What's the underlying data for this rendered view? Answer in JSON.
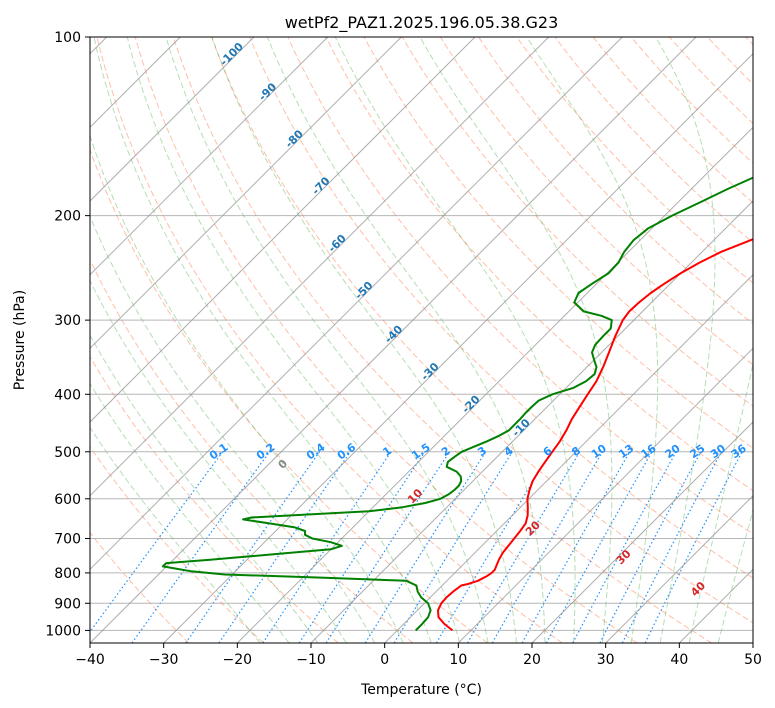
{
  "chart_data": {
    "type": "line",
    "title": "wetPf2_PAZ1.2025.196.05.38.G23",
    "xlabel": "Temperature (°C)",
    "ylabel": "Pressure (hPa)",
    "xlim": [
      -40,
      50
    ],
    "ylim": [
      1050,
      100
    ],
    "y_scale": "log",
    "grid": true,
    "x_ticks": [
      -40,
      -30,
      -20,
      -10,
      0,
      10,
      20,
      30,
      40,
      50
    ],
    "x_tick_labels": [
      "−40",
      "−30",
      "−20",
      "−10",
      "0",
      "10",
      "20",
      "30",
      "40",
      "50"
    ],
    "y_ticks": [
      1000,
      900,
      800,
      700,
      600,
      500,
      400,
      300,
      200,
      100
    ],
    "y_tick_labels": [
      "1000",
      "900",
      "800",
      "700",
      "600",
      "500",
      "400",
      "300",
      "200",
      "100"
    ],
    "series": [
      {
        "role": "temperature",
        "color": "#ff0000",
        "points": [
          [
            1000,
            7.5
          ],
          [
            975,
            5.5
          ],
          [
            950,
            3.8
          ],
          [
            925,
            2.8
          ],
          [
            900,
            2.3
          ],
          [
            880,
            2.2
          ],
          [
            860,
            2.3
          ],
          [
            840,
            2.6
          ],
          [
            835,
            3.3
          ],
          [
            825,
            4.2
          ],
          [
            810,
            4.8
          ],
          [
            800,
            5.0
          ],
          [
            790,
            5.0
          ],
          [
            775,
            4.6
          ],
          [
            760,
            4.2
          ],
          [
            740,
            3.8
          ],
          [
            720,
            3.6
          ],
          [
            700,
            3.4
          ],
          [
            680,
            3.2
          ],
          [
            660,
            2.9
          ],
          [
            640,
            2.1
          ],
          [
            620,
            1.0
          ],
          [
            600,
            -0.2
          ],
          [
            580,
            -1.1
          ],
          [
            560,
            -1.9
          ],
          [
            540,
            -2.4
          ],
          [
            520,
            -2.8
          ],
          [
            500,
            -3.2
          ],
          [
            480,
            -3.6
          ],
          [
            460,
            -4.2
          ],
          [
            440,
            -5.0
          ],
          [
            420,
            -5.6
          ],
          [
            400,
            -6.2
          ],
          [
            380,
            -6.8
          ],
          [
            360,
            -7.8
          ],
          [
            340,
            -9.0
          ],
          [
            320,
            -10.3
          ],
          [
            300,
            -11.5
          ],
          [
            290,
            -11.8
          ],
          [
            280,
            -11.7
          ],
          [
            270,
            -11.4
          ],
          [
            260,
            -10.8
          ],
          [
            250,
            -10.0
          ],
          [
            240,
            -8.9
          ],
          [
            230,
            -7.4
          ],
          [
            220,
            -5.0
          ],
          [
            210,
            -2.6
          ],
          [
            200,
            -0.3
          ],
          [
            190,
            2.1
          ],
          [
            180,
            4.7
          ],
          [
            170,
            6.2
          ],
          [
            160,
            7.6
          ],
          [
            150,
            9.0
          ],
          [
            140,
            11.0
          ],
          [
            130,
            13.0
          ],
          [
            120,
            15.5
          ],
          [
            115,
            16.8
          ],
          [
            110,
            17.7
          ],
          [
            105,
            18.1
          ],
          [
            100,
            18.5
          ]
        ]
      },
      {
        "role": "dewpoint",
        "color": "#008000",
        "points": [
          [
            1000,
            2.5
          ],
          [
            975,
            2.5
          ],
          [
            950,
            2.4
          ],
          [
            925,
            1.8
          ],
          [
            900,
            0.5
          ],
          [
            880,
            -1.2
          ],
          [
            860,
            -2.5
          ],
          [
            840,
            -3.5
          ],
          [
            825,
            -5.5
          ],
          [
            815,
            -17.0
          ],
          [
            805,
            -31.0
          ],
          [
            795,
            -36.0
          ],
          [
            785,
            -39.0
          ],
          [
            780,
            -40.5
          ],
          [
            770,
            -40.5
          ],
          [
            760,
            -35.0
          ],
          [
            750,
            -30.0
          ],
          [
            740,
            -25.0
          ],
          [
            730,
            -20.0
          ],
          [
            720,
            -19.0
          ],
          [
            710,
            -21.0
          ],
          [
            700,
            -24.0
          ],
          [
            690,
            -25.5
          ],
          [
            680,
            -26.0
          ],
          [
            670,
            -28.0
          ],
          [
            660,
            -32.0
          ],
          [
            650,
            -36.0
          ],
          [
            645,
            -35.0
          ],
          [
            640,
            -30.0
          ],
          [
            630,
            -20.0
          ],
          [
            620,
            -16.0
          ],
          [
            610,
            -13.5
          ],
          [
            600,
            -12.0
          ],
          [
            590,
            -11.5
          ],
          [
            580,
            -11.3
          ],
          [
            570,
            -11.3
          ],
          [
            560,
            -11.6
          ],
          [
            550,
            -12.3
          ],
          [
            540,
            -13.5
          ],
          [
            530,
            -15.5
          ],
          [
            520,
            -16.0
          ],
          [
            510,
            -15.8
          ],
          [
            500,
            -15.5
          ],
          [
            490,
            -14.5
          ],
          [
            480,
            -13.5
          ],
          [
            470,
            -12.6
          ],
          [
            460,
            -12.0
          ],
          [
            450,
            -12.0
          ],
          [
            440,
            -12.0
          ],
          [
            430,
            -12.1
          ],
          [
            420,
            -12.1
          ],
          [
            410,
            -12.0
          ],
          [
            400,
            -11.0
          ],
          [
            390,
            -9.0
          ],
          [
            380,
            -8.2
          ],
          [
            370,
            -8.0
          ],
          [
            360,
            -8.7
          ],
          [
            350,
            -10.0
          ],
          [
            340,
            -11.3
          ],
          [
            330,
            -11.9
          ],
          [
            320,
            -12.0
          ],
          [
            310,
            -12.0
          ],
          [
            300,
            -13.0
          ],
          [
            295,
            -15.0
          ],
          [
            290,
            -18.0
          ],
          [
            280,
            -20.5
          ],
          [
            270,
            -21.2
          ],
          [
            260,
            -20.6
          ],
          [
            250,
            -19.8
          ],
          [
            240,
            -19.9
          ],
          [
            230,
            -20.6
          ],
          [
            220,
            -20.9
          ],
          [
            210,
            -20.5
          ],
          [
            200,
            -19.0
          ],
          [
            190,
            -17.0
          ],
          [
            180,
            -15.0
          ],
          [
            170,
            -12.5
          ],
          [
            160,
            -11.0
          ],
          [
            150,
            -10.2
          ],
          [
            145,
            -10.0
          ],
          [
            140,
            -9.3
          ],
          [
            130,
            -8.0
          ],
          [
            125,
            -7.0
          ],
          [
            120,
            -6.0
          ],
          [
            115,
            -5.5
          ],
          [
            110,
            -4.5
          ],
          [
            106,
            -2.0
          ],
          [
            103,
            -0.8
          ],
          [
            100,
            0.0
          ]
        ]
      }
    ],
    "isotherm_labels": [
      {
        "value": -100,
        "label": "-100"
      },
      {
        "value": -90,
        "label": "-90"
      },
      {
        "value": -80,
        "label": "-80"
      },
      {
        "value": -70,
        "label": "-70"
      },
      {
        "value": -60,
        "label": "-60"
      },
      {
        "value": -50,
        "label": "-50"
      },
      {
        "value": -40,
        "label": "-40"
      },
      {
        "value": -30,
        "label": "-30"
      },
      {
        "value": -20,
        "label": "-20"
      },
      {
        "value": -10,
        "label": "-10"
      }
    ],
    "mixing_ratio_labels": [
      "0.1",
      "0.2",
      "0.4",
      "0.6",
      "1",
      "1.5",
      "2",
      "3",
      "4",
      "6",
      "8",
      "10",
      "13",
      "16",
      "20",
      "25",
      "30",
      "36"
    ],
    "mixing_ratio_values": [
      0.1,
      0.2,
      0.4,
      0.6,
      1,
      1.5,
      2,
      3,
      4,
      6,
      8,
      10,
      13,
      16,
      20,
      25,
      30,
      36
    ],
    "moist_adiabat_labels": [
      {
        "value": 0,
        "label": "0",
        "color": "#888888"
      },
      {
        "value": 10,
        "label": "10",
        "color": "#d62728"
      },
      {
        "value": 20,
        "label": "20",
        "color": "#d62728"
      },
      {
        "value": 30,
        "label": "30",
        "color": "#d62728"
      },
      {
        "value": 40,
        "label": "40",
        "color": "#d62728"
      }
    ],
    "colors": {
      "isotherm_label": "#1f77b4",
      "mixing_ratio": "#1e90ff",
      "dry_adiabat": "#ff7f50",
      "moist_adiabat": "#2ca02c",
      "grid": "#999999"
    }
  }
}
